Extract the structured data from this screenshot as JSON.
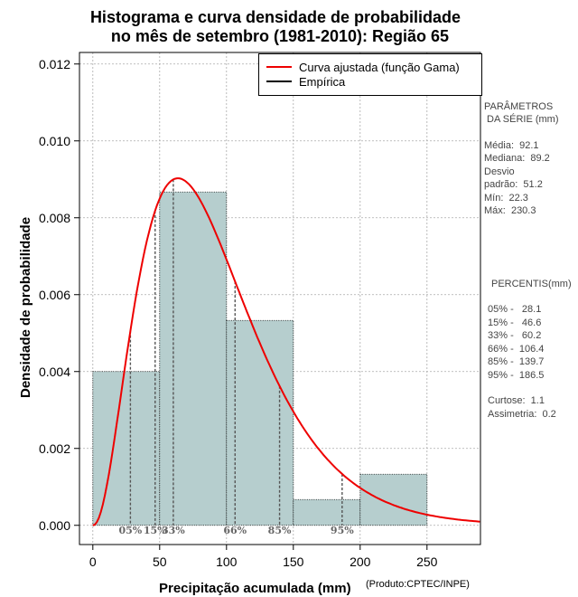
{
  "title_line1": "Histograma e curva densidade de probabilidade",
  "title_line2": "no mês de setembro (1981-2010): Região 65",
  "credit": "(Produto:CPTEC/INPE)",
  "colors": {
    "bar_fill": "#b6cece",
    "curve": "#ee0000",
    "grid": "#aaaaaa",
    "percentile_line": "#555555"
  },
  "chart_data": {
    "type": "bar",
    "title": "Histograma e curva densidade de probabilidade no mês de setembro (1981-2010): Região 65",
    "xlabel": "Precipitação acumulada (mm)",
    "ylabel": "Densidade de probabilidade",
    "xlim": [
      -10,
      290
    ],
    "ylim": [
      -0.0005,
      0.0123
    ],
    "xticks": [
      0,
      50,
      100,
      150,
      200,
      250
    ],
    "yticks": [
      0.0,
      0.002,
      0.004,
      0.006,
      0.008,
      0.01,
      0.012
    ],
    "ytick_labels": [
      "0.000",
      "0.002",
      "0.004",
      "0.006",
      "0.008",
      "0.010",
      "0.012"
    ],
    "bins": [
      {
        "x0": 0,
        "x1": 50,
        "density": 0.004
      },
      {
        "x0": 50,
        "x1": 100,
        "density": 0.00867
      },
      {
        "x0": 100,
        "x1": 150,
        "density": 0.00533
      },
      {
        "x0": 150,
        "x1": 200,
        "density": 0.00067
      },
      {
        "x0": 200,
        "x1": 250,
        "density": 0.00133
      }
    ],
    "fitted_curve": {
      "name": "Curva ajustada (função Gama)",
      "shape": 3.234,
      "scale": 28.49
    },
    "legend": [
      {
        "label": "Curva ajustada (função Gama)",
        "color": "#ee0000"
      },
      {
        "label": "Empírica",
        "color": "#000000"
      }
    ],
    "percentile_markers": [
      {
        "label": "05%",
        "value": 28.1
      },
      {
        "label": "15%",
        "value": 46.6
      },
      {
        "label": "33%",
        "value": 60.2
      },
      {
        "label": "66%",
        "value": 106.4
      },
      {
        "label": "85%",
        "value": 139.7
      },
      {
        "label": "95%",
        "value": 186.5
      }
    ]
  },
  "stats": {
    "heading1": "PARÂMETROS",
    "heading2": " DA SÉRIE (mm)",
    "media": "Média:  92.1",
    "mediana": "Mediana:  89.2",
    "desvio1": "Desvio",
    "desvio2": "padrão:  51.2",
    "min": "Mín:  22.3",
    "max": "Máx:  230.3"
  },
  "percentis": {
    "heading": "PERCENTIS(mm)",
    "rows": [
      "05% -   28.1",
      "15% -   46.6",
      "33% -   60.2",
      "66% -  106.4",
      "85% -  139.7",
      "95% -  186.5"
    ],
    "curtose": "Curtose:  1.1",
    "assimetria": "Assimetria:  0.2"
  }
}
